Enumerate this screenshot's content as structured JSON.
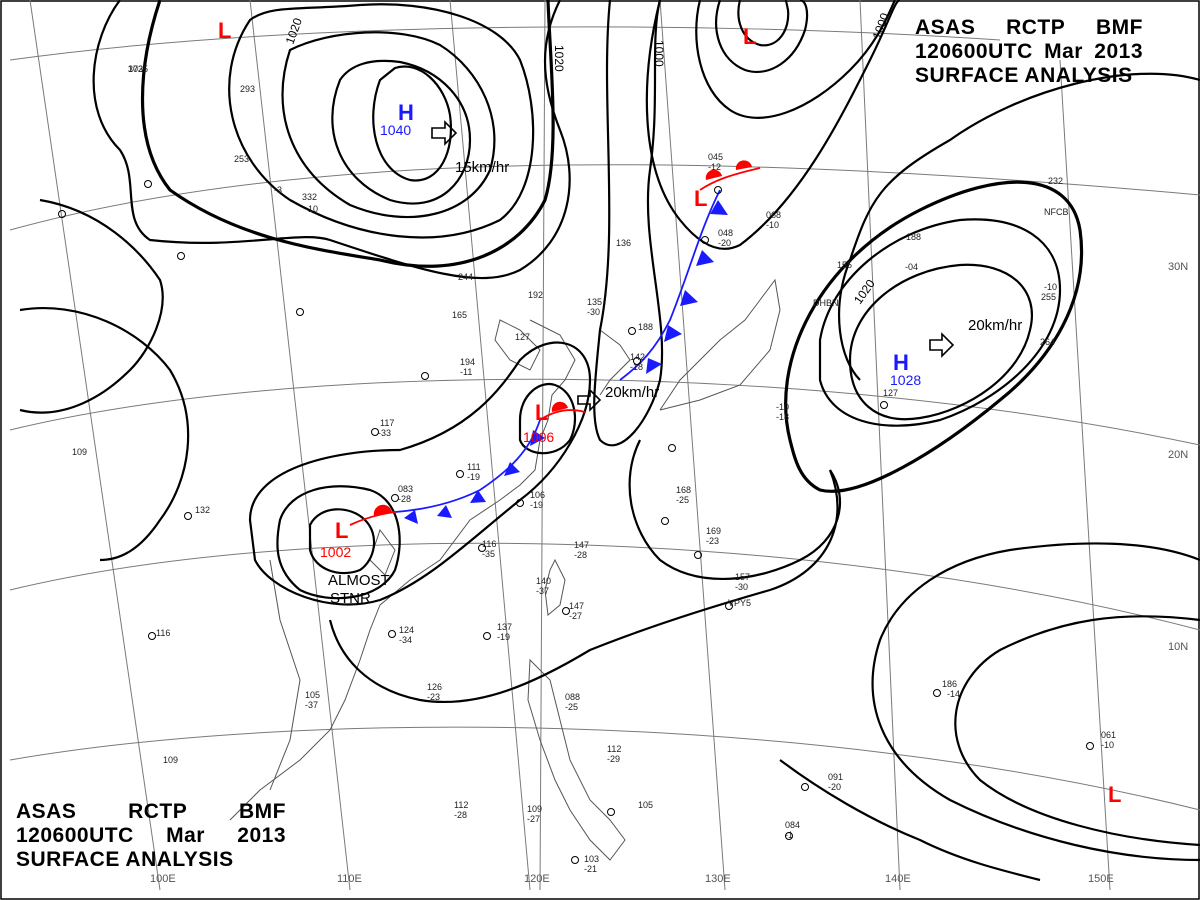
{
  "header": {
    "agency": [
      "ASAS",
      "RCTP",
      "BMF"
    ],
    "time": [
      "120600UTC",
      "Mar",
      "2013"
    ],
    "title": "SURFACE ANALYSIS"
  },
  "map_labels": {
    "lat_lon": [
      "30N",
      "20N",
      "10N",
      "110E",
      "120E",
      "130E",
      "140E",
      "150E",
      "100E"
    ],
    "isobar_labels": [
      "1020",
      "1020",
      "1000",
      "1000",
      "1020"
    ],
    "movement": [
      "15km/hr",
      "20km/hr",
      "20km/hr"
    ],
    "stationary_note": [
      "ALMOST",
      "STNR"
    ]
  },
  "pressure_centers": [
    {
      "type": "H",
      "value": "1040",
      "color": "#1a1aff"
    },
    {
      "type": "H",
      "value": "1028",
      "color": "#1a1aff"
    },
    {
      "type": "L",
      "value": "1006",
      "color": "#ff0000"
    },
    {
      "type": "L",
      "value": "1002",
      "color": "#ff0000"
    },
    {
      "type": "L",
      "value": "",
      "color": "#ff0000"
    },
    {
      "type": "L",
      "value": "",
      "color": "#ff0000"
    },
    {
      "type": "L",
      "value": "",
      "color": "#ff0000"
    },
    {
      "type": "L",
      "value": "",
      "color": "#ff0000"
    }
  ],
  "stations": [
    "173",
    "293",
    "253",
    "-3",
    "332",
    "-10",
    "244",
    "165",
    "194",
    "-11",
    "117",
    "-33",
    "083",
    "-28",
    "111",
    "-19",
    "106",
    "-19",
    "116",
    "-35",
    "147",
    "-28",
    "140",
    "-37",
    "147",
    "-27",
    "137",
    "-19",
    "124",
    "-34",
    "126",
    "-23",
    "105",
    "-37",
    "109",
    "116",
    "132",
    "109",
    "088",
    "-25",
    "112",
    "-29",
    "105",
    "103",
    "-21",
    "112",
    "-28",
    "109",
    "-27",
    "136",
    "192",
    "127",
    "135",
    "-30",
    "188",
    "142",
    "-18",
    "045",
    "-12",
    "068",
    "-10",
    "048",
    "-20",
    "188",
    "155",
    "-04",
    "232",
    "-10",
    "255",
    "264",
    "127",
    "-10",
    "-18",
    "168",
    "-25",
    "169",
    "-23",
    "157",
    "-30",
    "186",
    "-14",
    "061",
    "-10",
    "091",
    "-20",
    "084",
    "-1",
    "VPY5",
    "DHBN",
    "NFCB",
    "3025"
  ],
  "colors": {
    "isobar": "#000000",
    "graticule": "#7a7a7a",
    "coast": "#555555",
    "high": "#1a1aff",
    "low": "#ff0000",
    "cold_front": "#1a1aff",
    "warm_front": "#ff0000"
  }
}
